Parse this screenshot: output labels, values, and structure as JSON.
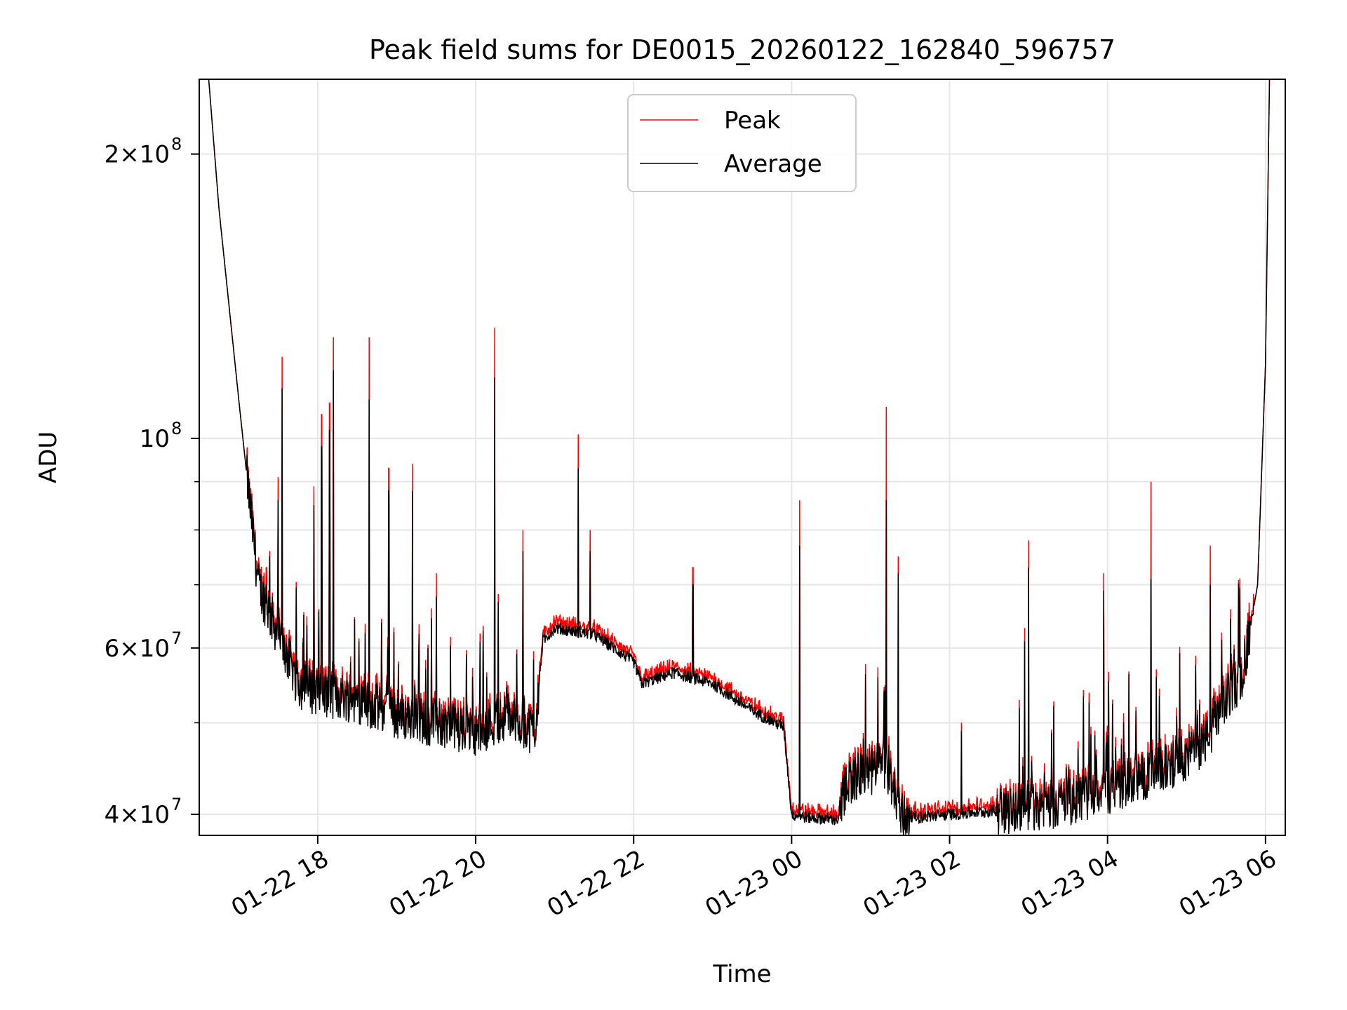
{
  "chart_data": {
    "type": "line",
    "title": "Peak field sums for DE0015_20260122_162840_596757",
    "xlabel": "Time",
    "ylabel": "ADU",
    "yscale": "log",
    "ylim": [
      38000000,
      240000000
    ],
    "xlim_hours": [
      16.5,
      30.25
    ],
    "grid": true,
    "legend_placement": "upper center",
    "x_ticks": [
      {
        "hour": 18,
        "label": "01-22 18"
      },
      {
        "hour": 20,
        "label": "01-22 20"
      },
      {
        "hour": 22,
        "label": "01-22 22"
      },
      {
        "hour": 24,
        "label": "01-23 00"
      },
      {
        "hour": 26,
        "label": "01-23 02"
      },
      {
        "hour": 28,
        "label": "01-23 04"
      },
      {
        "hour": 30,
        "label": "01-23 06"
      }
    ],
    "y_major_ticks": [
      {
        "value": 40000000,
        "mant": "4",
        "exp": "7"
      },
      {
        "value": 60000000,
        "mant": "6",
        "exp": "7"
      },
      {
        "value": 100000000,
        "mant": "",
        "exp": "8"
      },
      {
        "value": 200000000,
        "mant": "2",
        "exp": "8"
      }
    ],
    "y_minor_ticks": [
      50000000,
      70000000,
      80000000,
      90000000
    ],
    "baseline_hours": [
      16.62,
      16.75,
      17.0,
      17.25,
      17.5,
      17.75,
      18.0,
      18.5,
      19.0,
      19.5,
      20.0,
      20.4,
      20.75,
      20.85,
      21.0,
      21.5,
      22.0,
      22.1,
      22.5,
      23.0,
      23.5,
      23.9,
      24.0,
      24.2,
      24.6,
      24.7,
      25.2,
      25.4,
      25.6,
      26.0,
      26.5,
      27.0,
      27.5,
      28.0,
      28.5,
      29.0,
      29.3,
      29.5,
      29.7,
      29.9,
      30.0,
      30.05
    ],
    "baseline_values": [
      240000000,
      175000000,
      110000000,
      70000000,
      62000000,
      55000000,
      54000000,
      53000000,
      51000000,
      50000000,
      49000000,
      51000000,
      49000000,
      61000000,
      63000000,
      62000000,
      58000000,
      55000000,
      56500000,
      55000000,
      51500000,
      49500000,
      40000000,
      39700000,
      39500000,
      43500000,
      45000000,
      40000000,
      39700000,
      40000000,
      40300000,
      40800000,
      41200000,
      42500000,
      44000000,
      46000000,
      48500000,
      53000000,
      56000000,
      70000000,
      120000000,
      240000000
    ],
    "spikes": [
      {
        "hour": 17.35,
        "peak": 73000000,
        "average": 70000000
      },
      {
        "hour": 17.5,
        "peak": 91000000,
        "average": 86000000
      },
      {
        "hour": 17.55,
        "peak": 122000000,
        "average": 113000000
      },
      {
        "hour": 17.95,
        "peak": 89000000,
        "average": 85000000
      },
      {
        "hour": 18.05,
        "peak": 106000000,
        "average": 98000000
      },
      {
        "hour": 18.15,
        "peak": 109000000,
        "average": 102000000
      },
      {
        "hour": 18.2,
        "peak": 128000000,
        "average": 118000000
      },
      {
        "hour": 18.65,
        "peak": 128000000,
        "average": 110000000
      },
      {
        "hour": 18.9,
        "peak": 93000000,
        "average": 88000000
      },
      {
        "hour": 19.2,
        "peak": 94000000,
        "average": 88000000
      },
      {
        "hour": 19.5,
        "peak": 72000000,
        "average": 68000000
      },
      {
        "hour": 20.24,
        "peak": 131000000,
        "average": 116000000
      },
      {
        "hour": 20.6,
        "peak": 80000000,
        "average": 76000000
      },
      {
        "hour": 21.3,
        "peak": 101000000,
        "average": 93000000
      },
      {
        "hour": 21.45,
        "peak": 80000000,
        "average": 76000000
      },
      {
        "hour": 22.75,
        "peak": 73000000,
        "average": 70000000
      },
      {
        "hour": 24.1,
        "peak": 86000000,
        "average": 77000000
      },
      {
        "hour": 25.2,
        "peak": 108000000,
        "average": 86000000
      },
      {
        "hour": 25.35,
        "peak": 75000000,
        "average": 72000000
      },
      {
        "hour": 26.15,
        "peak": 50000000,
        "average": 49000000
      },
      {
        "hour": 26.95,
        "peak": 63000000,
        "average": 61000000
      },
      {
        "hour": 27.0,
        "peak": 78000000,
        "average": 73000000
      },
      {
        "hour": 27.95,
        "peak": 72000000,
        "average": 69000000
      },
      {
        "hour": 28.55,
        "peak": 90000000,
        "average": 71000000
      },
      {
        "hour": 29.3,
        "peak": 77000000,
        "average": 70000000
      }
    ],
    "series": [
      {
        "name": "Peak",
        "color": "#ff0000"
      },
      {
        "name": "Average",
        "color": "#000000"
      }
    ]
  }
}
